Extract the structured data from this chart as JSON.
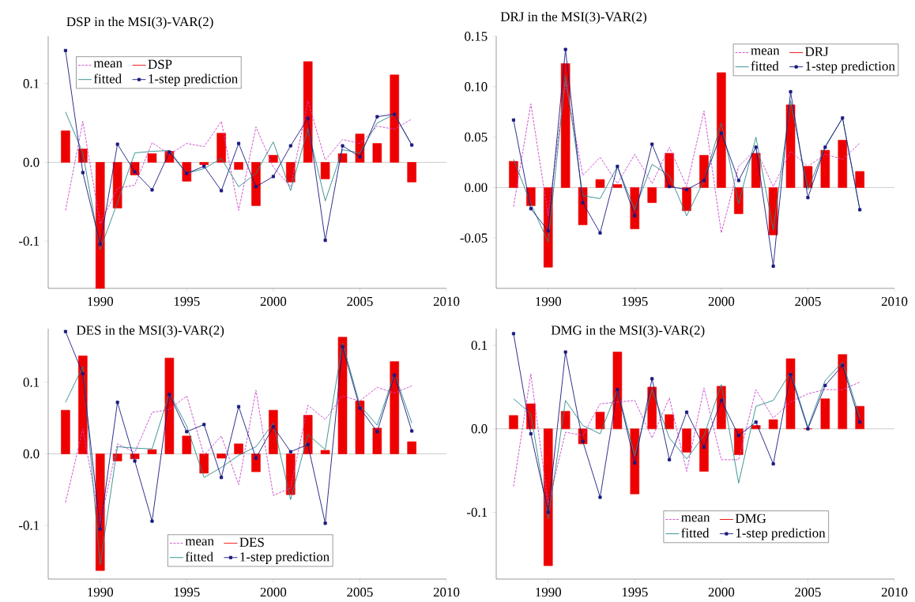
{
  "chart_data": [
    {
      "type": "bar",
      "title": "DSP in the MSI(3)-VAR(2)",
      "x": [
        1988,
        1989,
        1990,
        1991,
        1992,
        1993,
        1994,
        1995,
        1996,
        1997,
        1998,
        1999,
        2000,
        2001,
        2002,
        2003,
        2004,
        2005,
        2006,
        2007,
        2008
      ],
      "xlim": [
        1987,
        2010
      ],
      "xticks": [
        1990,
        1995,
        2000,
        2005,
        2010
      ],
      "ylim": [
        -0.16,
        0.16
      ],
      "yticks": [
        {
          "value": -0.1,
          "label": "-0.1"
        },
        {
          "value": 0,
          "label": "0.0"
        },
        {
          "value": 0.1,
          "label": "0.1"
        }
      ],
      "legend": "top",
      "ref_lines": [
        {
          "axis": "y",
          "value": 0,
          "color": "#808080"
        }
      ],
      "series": [
        {
          "name": "mean",
          "type": "line",
          "line_style": "dashed",
          "color": "#cc44cc",
          "values": [
            -0.061,
            0.052,
            -0.078,
            -0.033,
            -0.029,
            0.025,
            0.01,
            0.024,
            0.02,
            0.052,
            -0.061,
            0.045,
            -0.006,
            -0.031,
            0.078,
            0.003,
            0.029,
            0.024,
            0.046,
            0.042,
            0.055
          ]
        },
        {
          "name": "DSP",
          "color": "#ee0000",
          "values": [
            0.04,
            0.017,
            -0.16,
            -0.058,
            -0.016,
            0.011,
            0.014,
            -0.024,
            -0.003,
            0.037,
            -0.009,
            -0.055,
            0.009,
            -0.025,
            0.128,
            -0.021,
            0.011,
            0.036,
            0.024,
            0.111,
            -0.025
          ]
        },
        {
          "name": "fitted",
          "type": "line",
          "color": "#2a8a8a",
          "values": [
            0.064,
            0.012,
            -0.111,
            -0.051,
            0.012,
            0.014,
            0.015,
            -0.014,
            -0.008,
            0.005,
            -0.031,
            -0.014,
            0.026,
            -0.036,
            0.043,
            -0.049,
            0.016,
            0.012,
            0.05,
            0.061,
            0.022
          ]
        },
        {
          "name": "1-step prediction",
          "type": "line",
          "marker": "square",
          "color": "#1a1a80",
          "values": [
            0.142,
            -0.013,
            -0.104,
            0.023,
            -0.012,
            -0.035,
            0.013,
            -0.014,
            -0.005,
            -0.036,
            0.024,
            -0.031,
            -0.018,
            0.021,
            0.056,
            -0.099,
            0.021,
            0.007,
            0.058,
            0.061,
            0.022
          ]
        }
      ]
    },
    {
      "type": "bar",
      "title": "DRJ in the MSI(3)-VAR(2)",
      "x": [
        1988,
        1989,
        1990,
        1991,
        1992,
        1993,
        1994,
        1995,
        1996,
        1997,
        1998,
        1999,
        2000,
        2001,
        2002,
        2003,
        2004,
        2005,
        2006,
        2007,
        2008
      ],
      "xlim": [
        1987,
        2010
      ],
      "xticks": [
        1990,
        1995,
        2000,
        2005,
        2010
      ],
      "ylim": [
        -0.1,
        0.15
      ],
      "yticks": [
        {
          "value": -0.05,
          "label": "-0.05"
        },
        {
          "value": 0,
          "label": "0.00"
        },
        {
          "value": 0.05,
          "label": "0.05"
        },
        {
          "value": 0.1,
          "label": "0.10"
        },
        {
          "value": 0.15,
          "label": "0.15"
        }
      ],
      "legend": "top right",
      "ref_lines": [
        {
          "axis": "y",
          "value": 0,
          "color": "#808080"
        }
      ],
      "series": [
        {
          "name": "mean",
          "type": "line",
          "line_style": "dashed",
          "color": "#cc44cc",
          "values": [
            -0.019,
            0.083,
            -0.028,
            0.105,
            0.012,
            0.03,
            0.004,
            0.033,
            0.004,
            0.04,
            0.001,
            0.076,
            -0.045,
            0.021,
            0.038,
            0.001,
            0.036,
            0.021,
            0.033,
            0.028,
            0.044
          ]
        },
        {
          "name": "DRJ",
          "color": "#ee0000",
          "values": [
            0.026,
            -0.018,
            -0.079,
            0.123,
            -0.037,
            0.008,
            0.003,
            -0.041,
            -0.015,
            0.034,
            -0.023,
            0.032,
            0.114,
            -0.026,
            0.034,
            -0.047,
            0.082,
            0.021,
            0.037,
            0.047,
            0.016
          ]
        },
        {
          "name": "fitted",
          "type": "line",
          "color": "#2a8a8a",
          "values": [
            0.028,
            -0.016,
            -0.054,
            0.111,
            -0.008,
            -0.011,
            0.021,
            -0.022,
            0.023,
            0.012,
            -0.028,
            0.007,
            0.064,
            -0.016,
            0.05,
            -0.042,
            0.086,
            -0.002,
            0.041,
            0.069,
            -0.022
          ]
        },
        {
          "name": "1-step prediction",
          "type": "line",
          "marker": "square",
          "color": "#1a1a80",
          "values": [
            0.067,
            -0.021,
            -0.043,
            0.137,
            -0.015,
            -0.045,
            0.021,
            -0.028,
            0.043,
            0.001,
            -0.002,
            0.007,
            0.054,
            0.007,
            0.04,
            -0.078,
            0.095,
            -0.01,
            0.04,
            0.069,
            -0.022
          ]
        }
      ]
    },
    {
      "type": "bar",
      "title": "DES in the MSI(3)-VAR(2)",
      "x": [
        1988,
        1989,
        1990,
        1991,
        1992,
        1993,
        1994,
        1995,
        1996,
        1997,
        1998,
        1999,
        2000,
        2001,
        2002,
        2003,
        2004,
        2005,
        2006,
        2007,
        2008
      ],
      "xlim": [
        1987,
        2010
      ],
      "xticks": [
        1990,
        1995,
        2000,
        2005,
        2010
      ],
      "ylim": [
        -0.175,
        0.175
      ],
      "yticks": [
        {
          "value": -0.1,
          "label": "-0.1"
        },
        {
          "value": 0,
          "label": "0.0"
        },
        {
          "value": 0.1,
          "label": "0.1"
        }
      ],
      "legend": "bottom",
      "ref_lines": [
        {
          "axis": "y",
          "value": 0,
          "color": "#808080"
        }
      ],
      "series": [
        {
          "name": "mean",
          "type": "line",
          "line_style": "dashed",
          "color": "#cc44cc",
          "values": [
            -0.068,
            0.035,
            -0.097,
            0.014,
            0.002,
            0.058,
            0.062,
            0.081,
            -0.002,
            0.025,
            -0.043,
            0.089,
            -0.058,
            -0.048,
            0.068,
            0.048,
            0.081,
            0.074,
            0.093,
            0.085,
            0.095
          ]
        },
        {
          "name": "DES",
          "color": "#ee0000",
          "values": [
            0.061,
            0.137,
            -0.163,
            -0.01,
            -0.007,
            0.006,
            0.134,
            0.025,
            -0.027,
            -0.006,
            0.014,
            -0.025,
            0.061,
            -0.057,
            0.054,
            0.005,
            0.163,
            0.074,
            0.036,
            0.129,
            0.017
          ]
        },
        {
          "name": "fitted",
          "type": "line",
          "color": "#2a8a8a",
          "values": [
            0.072,
            0.122,
            -0.155,
            0.01,
            0.008,
            0.007,
            0.085,
            0.039,
            -0.033,
            -0.019,
            -0.002,
            0.01,
            0.043,
            -0.064,
            0.027,
            0.006,
            0.155,
            0.068,
            0.04,
            0.112,
            0.043
          ]
        },
        {
          "name": "1-step prediction",
          "type": "line",
          "marker": "square",
          "color": "#1a1a80",
          "values": [
            0.171,
            0.112,
            -0.105,
            0.072,
            -0.01,
            -0.094,
            0.083,
            0.031,
            0.041,
            -0.033,
            0.066,
            -0.006,
            0.038,
            0.003,
            0.013,
            -0.097,
            0.15,
            0.064,
            0.031,
            0.11,
            0.032
          ]
        }
      ]
    },
    {
      "type": "bar",
      "title": "DMG in the MSI(3)-VAR(2)",
      "x": [
        1988,
        1989,
        1990,
        1991,
        1992,
        1993,
        1994,
        1995,
        1996,
        1997,
        1998,
        1999,
        2000,
        2001,
        2002,
        2003,
        2004,
        2005,
        2006,
        2007,
        2008
      ],
      "xlim": [
        1987,
        2010
      ],
      "xticks": [
        1990,
        1995,
        2000,
        2005,
        2010
      ],
      "ylim": [
        -0.18,
        0.12
      ],
      "yticks": [
        {
          "value": -0.1,
          "label": "-0.1"
        },
        {
          "value": 0,
          "label": "0.0"
        },
        {
          "value": 0.1,
          "label": "0.1"
        }
      ],
      "legend": "bottom right",
      "ref_lines": [
        {
          "axis": "y",
          "value": 0,
          "color": "#808080"
        }
      ],
      "series": [
        {
          "name": "mean",
          "type": "line",
          "line_style": "dashed",
          "color": "#cc44cc",
          "values": [
            -0.069,
            0.066,
            -0.091,
            -0.004,
            -0.008,
            0.03,
            0.032,
            0.034,
            -0.011,
            0.037,
            -0.051,
            0.049,
            -0.037,
            -0.037,
            0.047,
            0.013,
            0.032,
            0.042,
            0.047,
            0.047,
            0.056
          ]
        },
        {
          "name": "DMG",
          "color": "#ee0000",
          "values": [
            0.016,
            0.03,
            -0.164,
            0.021,
            -0.018,
            0.02,
            0.092,
            -0.078,
            0.05,
            0.017,
            -0.028,
            -0.051,
            0.051,
            -0.031,
            0.004,
            0.011,
            0.084,
            0.0,
            0.036,
            0.089,
            0.027
          ]
        },
        {
          "name": "fitted",
          "type": "line",
          "color": "#2a8a8a",
          "values": [
            0.036,
            0.018,
            -0.108,
            0.034,
            0.004,
            -0.006,
            0.047,
            -0.032,
            0.047,
            -0.011,
            -0.036,
            -0.008,
            0.053,
            -0.065,
            0.027,
            0.034,
            0.068,
            0.002,
            0.058,
            0.08,
            0.013
          ]
        },
        {
          "name": "1-step prediction",
          "type": "line",
          "marker": "square",
          "color": "#1a1a80",
          "values": [
            0.114,
            -0.006,
            -0.1,
            0.092,
            -0.015,
            -0.082,
            0.047,
            -0.041,
            0.06,
            -0.037,
            0.02,
            -0.022,
            0.034,
            -0.008,
            0.008,
            -0.042,
            0.065,
            0.0,
            0.052,
            0.076,
            0.008
          ]
        }
      ]
    }
  ]
}
